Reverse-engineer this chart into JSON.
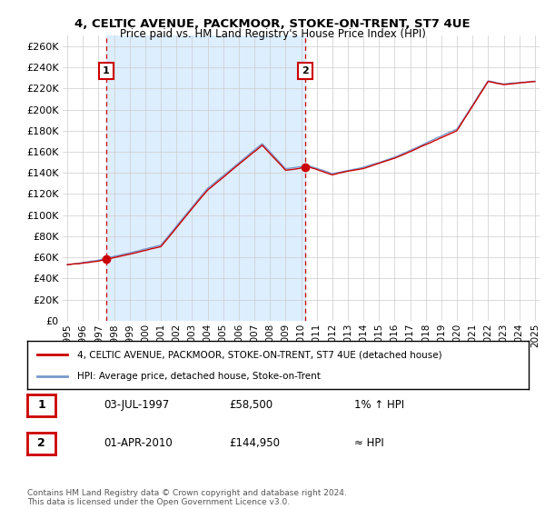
{
  "title": "4, CELTIC AVENUE, PACKMOOR, STOKE-ON-TRENT, ST7 4UE",
  "subtitle": "Price paid vs. HM Land Registry's House Price Index (HPI)",
  "ylabel_ticks": [
    0,
    20000,
    40000,
    60000,
    80000,
    100000,
    120000,
    140000,
    160000,
    180000,
    200000,
    220000,
    240000,
    260000
  ],
  "ylim": [
    0,
    270000
  ],
  "xlim_start": 1994.7,
  "xlim_end": 2025.3,
  "sale1_year": 1997.5,
  "sale1_price": 58500,
  "sale1_label": "1",
  "sale1_date": "03-JUL-1997",
  "sale1_amount": "£58,500",
  "sale1_relation": "1% ↑ HPI",
  "sale2_year": 2010.25,
  "sale2_price": 144950,
  "sale2_label": "2",
  "sale2_date": "01-APR-2010",
  "sale2_amount": "£144,950",
  "sale2_relation": "≈ HPI",
  "line1_label": "4, CELTIC AVENUE, PACKMOOR, STOKE-ON-TRENT, ST7 4UE (detached house)",
  "line2_label": "HPI: Average price, detached house, Stoke-on-Trent",
  "line1_color": "#cc0000",
  "line2_color": "#7799cc",
  "shade_color": "#ddeeff",
  "background_color": "#ffffff",
  "grid_color": "#cccccc",
  "footnote": "Contains HM Land Registry data © Crown copyright and database right 2024.\nThis data is licensed under the Open Government Licence v3.0.",
  "x_ticks": [
    1995,
    1996,
    1997,
    1998,
    1999,
    2000,
    2001,
    2002,
    2003,
    2004,
    2005,
    2006,
    2007,
    2008,
    2009,
    2010,
    2011,
    2012,
    2013,
    2014,
    2015,
    2016,
    2017,
    2018,
    2019,
    2020,
    2021,
    2022,
    2023,
    2024,
    2025
  ]
}
